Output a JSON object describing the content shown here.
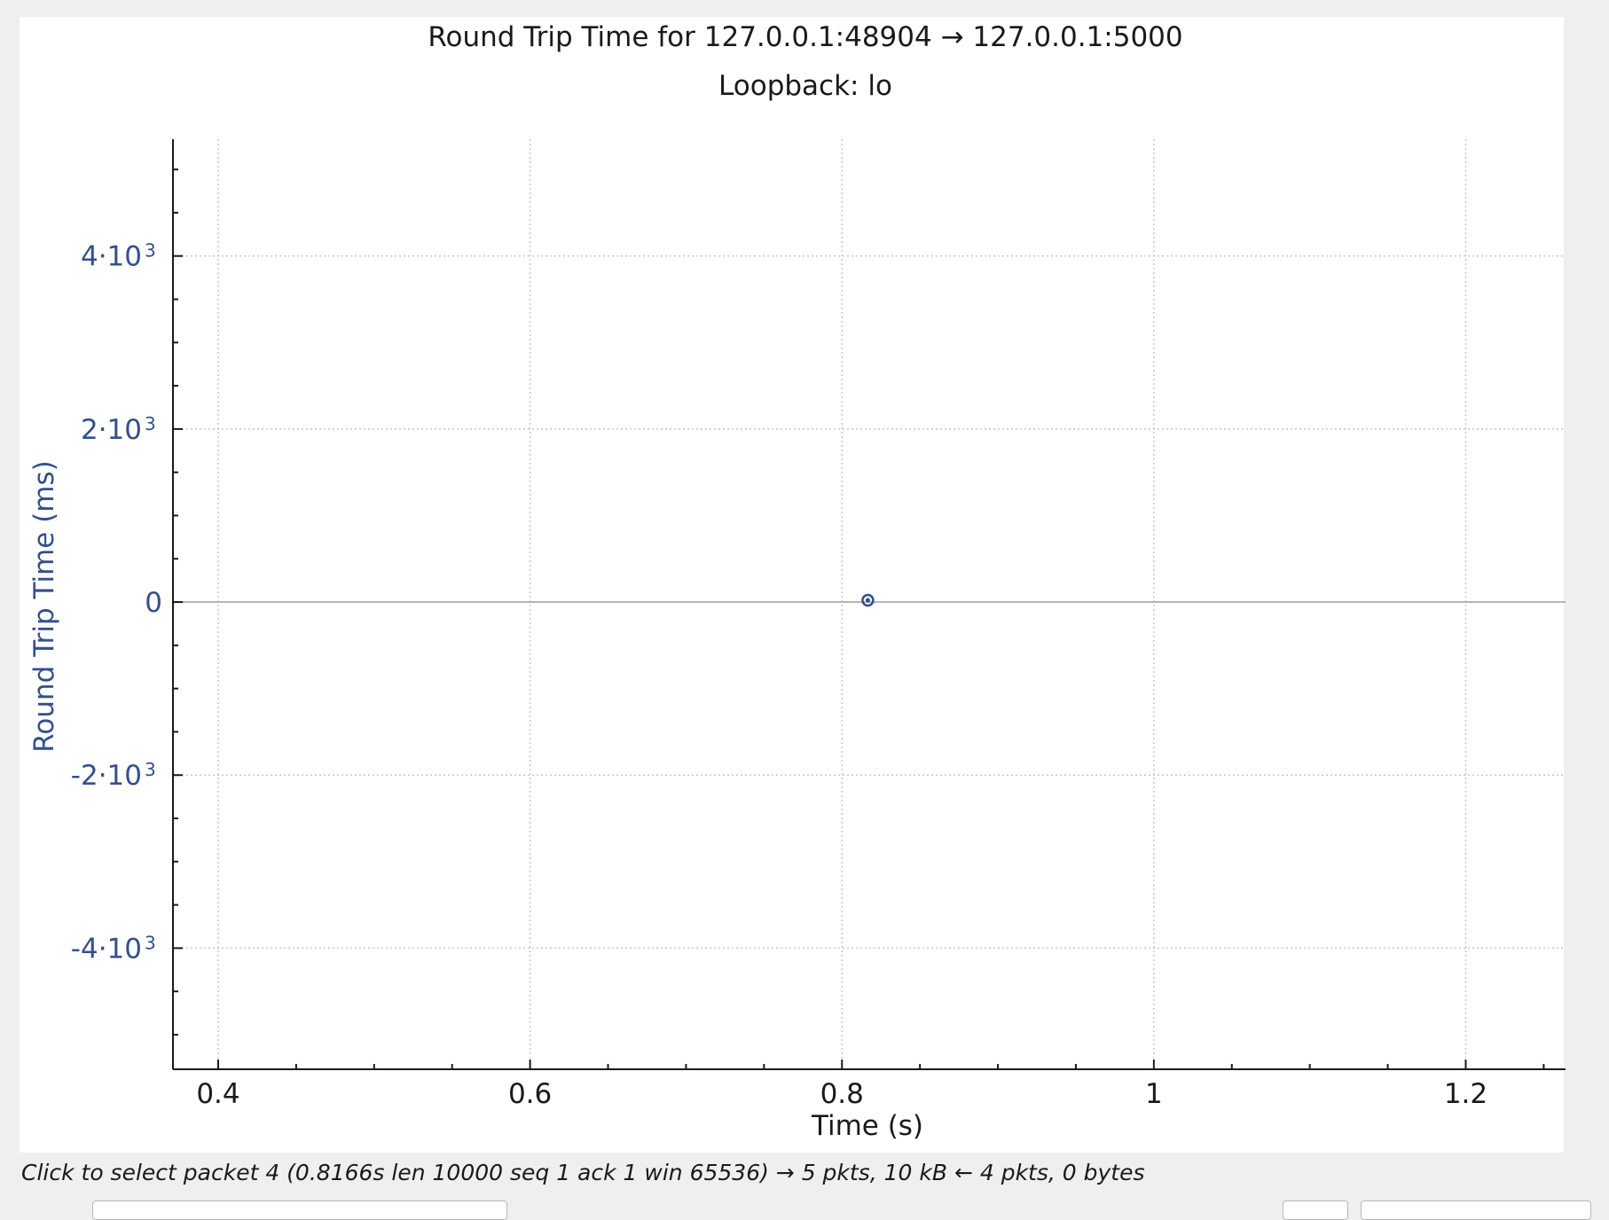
{
  "chart_data": {
    "type": "scatter",
    "title": "Round Trip Time for 127.0.0.1:48904 → 127.0.0.1:5000",
    "subtitle": "Loopback: lo",
    "xlabel": "Time (s)",
    "ylabel": "Round Trip Time (ms)",
    "xlim": [
      0.371,
      1.264
    ],
    "ylim": [
      -5400,
      5350
    ],
    "x_ticks": [
      {
        "value": 0.4,
        "label": "0.4"
      },
      {
        "value": 0.6,
        "label": "0.6"
      },
      {
        "value": 0.8,
        "label": "0.8"
      },
      {
        "value": 1.0,
        "label": "1"
      },
      {
        "value": 1.2,
        "label": "1.2"
      }
    ],
    "x_minor_step": 0.05,
    "y_ticks": [
      {
        "value": 4000,
        "mantissa": "4·10",
        "exp": "3"
      },
      {
        "value": 2000,
        "mantissa": "2·10",
        "exp": "3"
      },
      {
        "value": 0,
        "mantissa": "0",
        "exp": ""
      },
      {
        "value": -2000,
        "mantissa": "-2·10",
        "exp": "3"
      },
      {
        "value": -4000,
        "mantissa": "-4·10",
        "exp": "3"
      }
    ],
    "y_minor_step": 500,
    "grid": true,
    "series": [
      {
        "points": [
          {
            "x": 0.8166,
            "y": 0
          }
        ]
      }
    ],
    "colors": {
      "marker": "#34508a",
      "y_axis_text": "#34508a",
      "grid": "#c8c8c8",
      "zero_line": "#b4b4b4"
    }
  },
  "status": {
    "hint": "Click to select packet 4 (0.8166s len 10000 seq 1 ack 1 win 65536) → 5 pkts, 10 kB ← 4 pkts, 0 bytes"
  }
}
